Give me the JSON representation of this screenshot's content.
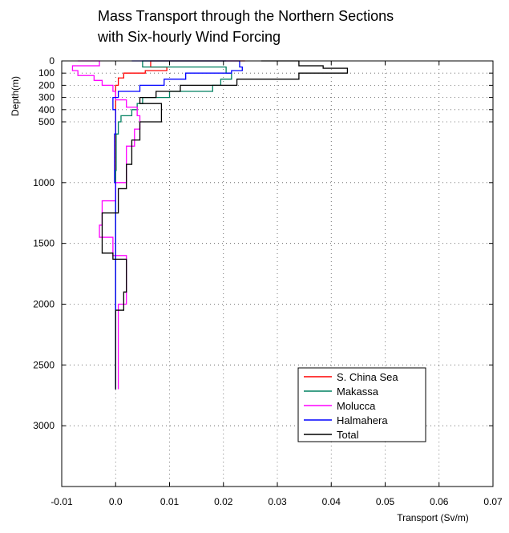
{
  "chart_data": {
    "type": "line",
    "title_lines": [
      "Mass Transport through the Northern Sections",
      "with Six-hourly Wind Forcing"
    ],
    "xlabel": "Transport  (Sv/m)",
    "ylabel": "Depth(m)",
    "xlim": [
      -0.01,
      0.07
    ],
    "ylim": [
      0,
      3500
    ],
    "y_inverted": true,
    "grid": "dotted",
    "legend_position": "lower-right",
    "x_ticks": [
      {
        "value": -0.01,
        "label": "-0.01"
      },
      {
        "value": 0,
        "label": "0.0"
      },
      {
        "value": 0.01,
        "label": "0.01"
      },
      {
        "value": 0.02,
        "label": "0.02"
      },
      {
        "value": 0.03,
        "label": "0.03"
      },
      {
        "value": 0.04,
        "label": "0.04"
      },
      {
        "value": 0.05,
        "label": "0.05"
      },
      {
        "value": 0.06,
        "label": "0.06"
      },
      {
        "value": 0.07,
        "label": "0.07"
      }
    ],
    "y_ticks_upper": [
      {
        "value": 0,
        "label": "0"
      },
      {
        "value": 100,
        "label": "100"
      },
      {
        "value": 200,
        "label": "200"
      },
      {
        "value": 300,
        "label": "300"
      },
      {
        "value": 400,
        "label": "400"
      },
      {
        "value": 500,
        "label": "500"
      }
    ],
    "y_ticks_lower": [
      {
        "value": 1000,
        "label": "1000"
      },
      {
        "value": 1500,
        "label": "1500"
      },
      {
        "value": 2000,
        "label": "2000"
      },
      {
        "value": 2500,
        "label": "2500"
      },
      {
        "value": 3000,
        "label": "3000"
      }
    ],
    "series": [
      {
        "name": "S. China Sea",
        "color": "#ff0000",
        "points": [
          [
            0.024,
            0
          ],
          [
            0.0065,
            0
          ],
          [
            0.0065,
            50
          ],
          [
            0.0095,
            50
          ],
          [
            0.0095,
            80
          ],
          [
            0.0055,
            80
          ],
          [
            0.0055,
            100
          ],
          [
            0.0015,
            100
          ],
          [
            0.0015,
            140
          ],
          [
            0.0005,
            140
          ],
          [
            0.0005,
            200
          ],
          [
            0.0,
            200
          ],
          [
            0.0,
            800
          ],
          [
            0.0,
            2700
          ]
        ]
      },
      {
        "name": "Makassa",
        "color": "#008060",
        "points": [
          [
            0.0205,
            0
          ],
          [
            0.005,
            0
          ],
          [
            0.005,
            50
          ],
          [
            0.0205,
            50
          ],
          [
            0.0205,
            100
          ],
          [
            0.0215,
            100
          ],
          [
            0.0215,
            150
          ],
          [
            0.0195,
            150
          ],
          [
            0.0195,
            200
          ],
          [
            0.018,
            200
          ],
          [
            0.018,
            250
          ],
          [
            0.01,
            250
          ],
          [
            0.01,
            300
          ],
          [
            0.005,
            300
          ],
          [
            0.005,
            350
          ],
          [
            0.004,
            350
          ],
          [
            0.004,
            400
          ],
          [
            0.003,
            400
          ],
          [
            0.003,
            450
          ],
          [
            0.001,
            450
          ],
          [
            0.001,
            500
          ],
          [
            0.0005,
            500
          ],
          [
            0.0005,
            600
          ],
          [
            0.0001,
            600
          ],
          [
            0.0001,
            900
          ],
          [
            0.0,
            900
          ],
          [
            0.0,
            2100
          ],
          [
            0.0,
            2700
          ]
        ]
      },
      {
        "name": "Molucca",
        "color": "#ff00ff",
        "points": [
          [
            -0.007,
            0
          ],
          [
            -0.003,
            0
          ],
          [
            -0.003,
            40
          ],
          [
            -0.008,
            40
          ],
          [
            -0.008,
            80
          ],
          [
            -0.007,
            80
          ],
          [
            -0.007,
            120
          ],
          [
            -0.004,
            120
          ],
          [
            -0.004,
            160
          ],
          [
            -0.0025,
            160
          ],
          [
            -0.0025,
            200
          ],
          [
            -0.0005,
            200
          ],
          [
            -0.0005,
            250
          ],
          [
            0.0,
            250
          ],
          [
            0.0,
            320
          ],
          [
            0.002,
            320
          ],
          [
            0.002,
            380
          ],
          [
            0.004,
            380
          ],
          [
            0.004,
            450
          ],
          [
            0.0045,
            450
          ],
          [
            0.0045,
            560
          ],
          [
            0.0035,
            560
          ],
          [
            0.0035,
            700
          ],
          [
            0.002,
            700
          ],
          [
            0.002,
            1000
          ],
          [
            0.0,
            1000
          ],
          [
            0.0,
            1150
          ],
          [
            -0.0025,
            1150
          ],
          [
            -0.0025,
            1350
          ],
          [
            -0.003,
            1350
          ],
          [
            -0.003,
            1450
          ],
          [
            -0.0005,
            1450
          ],
          [
            -0.0005,
            1600
          ],
          [
            0.002,
            1600
          ],
          [
            0.002,
            2000
          ],
          [
            0.0005,
            2000
          ],
          [
            0.0005,
            2700
          ]
        ]
      },
      {
        "name": "Halmahera",
        "color": "#0000ff",
        "points": [
          [
            0.003,
            0
          ],
          [
            0.023,
            0
          ],
          [
            0.023,
            50
          ],
          [
            0.0235,
            50
          ],
          [
            0.0235,
            80
          ],
          [
            0.0215,
            80
          ],
          [
            0.0215,
            100
          ],
          [
            0.013,
            100
          ],
          [
            0.013,
            150
          ],
          [
            0.009,
            150
          ],
          [
            0.009,
            200
          ],
          [
            0.0045,
            200
          ],
          [
            0.0045,
            250
          ],
          [
            0.0005,
            250
          ],
          [
            0.0005,
            300
          ],
          [
            -0.0005,
            300
          ],
          [
            -0.0005,
            400
          ],
          [
            0.0,
            400
          ],
          [
            0.0,
            600
          ],
          [
            -0.0002,
            600
          ],
          [
            -0.0002,
            1000
          ],
          [
            0.0,
            1000
          ],
          [
            0.0,
            2700
          ]
        ]
      },
      {
        "name": "Total",
        "color": "#000000",
        "points": [
          [
            0.027,
            0
          ],
          [
            0.034,
            0
          ],
          [
            0.034,
            40
          ],
          [
            0.0385,
            40
          ],
          [
            0.0385,
            60
          ],
          [
            0.043,
            60
          ],
          [
            0.043,
            100
          ],
          [
            0.034,
            100
          ],
          [
            0.034,
            150
          ],
          [
            0.0225,
            150
          ],
          [
            0.0225,
            200
          ],
          [
            0.012,
            200
          ],
          [
            0.012,
            250
          ],
          [
            0.0075,
            250
          ],
          [
            0.0075,
            300
          ],
          [
            0.0045,
            300
          ],
          [
            0.0045,
            350
          ],
          [
            0.0085,
            350
          ],
          [
            0.0085,
            500
          ],
          [
            0.0045,
            500
          ],
          [
            0.0045,
            650
          ],
          [
            0.003,
            650
          ],
          [
            0.003,
            850
          ],
          [
            0.002,
            850
          ],
          [
            0.002,
            1050
          ],
          [
            0.0005,
            1050
          ],
          [
            0.0005,
            1250
          ],
          [
            -0.0025,
            1250
          ],
          [
            -0.0025,
            1400
          ],
          [
            -0.0025,
            1580
          ],
          [
            -0.0005,
            1580
          ],
          [
            -0.0005,
            1630
          ],
          [
            0.002,
            1630
          ],
          [
            0.002,
            1900
          ],
          [
            0.0015,
            1900
          ],
          [
            0.0015,
            2050
          ],
          [
            0.0,
            2050
          ],
          [
            0.0,
            2700
          ]
        ]
      }
    ]
  }
}
